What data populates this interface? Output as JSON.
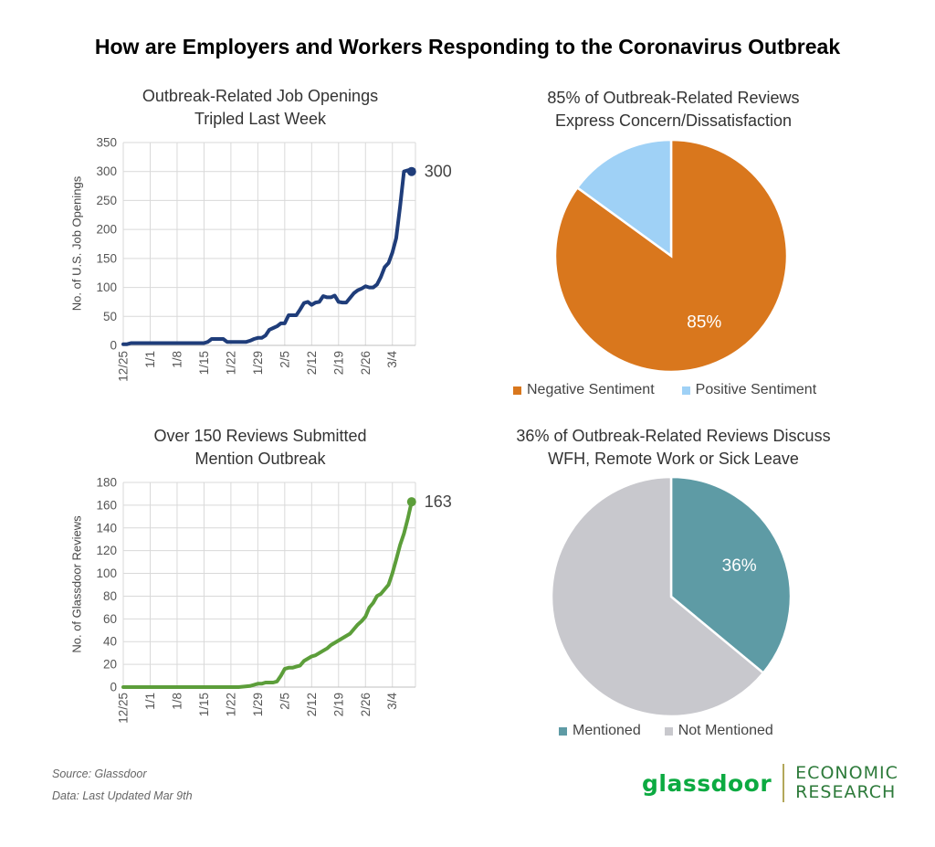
{
  "page": {
    "title": "How are Employers and Workers Responding to the Coronavirus Outbreak",
    "source": "Source: Glassdoor",
    "updated": "Data: Last Updated Mar 9th",
    "logo_left": "glassdoor",
    "logo_right_line1": "ECONOMIC",
    "logo_right_line2": "RESEARCH"
  },
  "chart_data": [
    {
      "type": "line",
      "title_line1": "Outbreak-Related Job Openings",
      "title_line2": "Tripled Last Week",
      "ylabel": "No. of U.S. Job Openings",
      "ylim": [
        0,
        350
      ],
      "yticks": [
        0,
        50,
        100,
        150,
        200,
        250,
        300,
        350
      ],
      "xlim": [
        0,
        76
      ],
      "xticks": [
        "12/25",
        "1/1",
        "1/8",
        "1/15",
        "1/22",
        "1/29",
        "2/5",
        "2/12",
        "2/19",
        "2/26",
        "3/4"
      ],
      "color": "#1f3d7a",
      "end_label": "300",
      "series": [
        {
          "x": [
            0,
            1,
            2,
            3,
            4,
            5,
            6,
            7,
            8,
            9,
            10,
            11,
            12,
            13,
            14,
            15,
            16,
            17,
            18,
            19,
            20,
            21,
            22,
            23,
            24,
            25,
            26,
            27,
            28,
            29,
            30,
            31,
            32,
            33,
            34,
            35,
            36,
            37,
            38,
            39,
            40,
            41,
            42,
            43,
            44,
            45,
            46,
            47,
            48,
            49,
            50,
            51,
            52,
            53,
            54,
            55,
            56,
            57,
            58,
            59,
            60,
            61,
            62,
            63,
            64,
            65,
            66,
            67,
            68,
            69,
            70,
            71,
            72,
            73,
            74,
            75
          ],
          "values": [
            2,
            2,
            4,
            4,
            4,
            4,
            4,
            4,
            4,
            4,
            4,
            4,
            4,
            4,
            4,
            4,
            4,
            4,
            4,
            4,
            4,
            4,
            6,
            11,
            11,
            11,
            11,
            6,
            6,
            6,
            6,
            6,
            6,
            8,
            11,
            13,
            13,
            17,
            27,
            30,
            33,
            38,
            38,
            52,
            52,
            52,
            62,
            73,
            75,
            70,
            74,
            75,
            85,
            83,
            83,
            86,
            75,
            74,
            74,
            82,
            90,
            95,
            98,
            102,
            100,
            100,
            105,
            118,
            135,
            142,
            160,
            185,
            240,
            300,
            302,
            300
          ]
        }
      ]
    },
    {
      "type": "pie",
      "title_line1": "85% of Outbreak-Related Reviews",
      "title_line2": "Express Concern/Dissatisfaction",
      "slices": [
        {
          "label": "Negative Sentiment",
          "value": 85,
          "color": "#d9771d",
          "text": "85%"
        },
        {
          "label": "Positive Sentiment",
          "value": 15,
          "color": "#9fd1f6",
          "text": ""
        }
      ]
    },
    {
      "type": "line",
      "title_line1": "Over 150 Reviews Submitted",
      "title_line2": "Mention Outbreak",
      "ylabel": "No. of Glassdoor Reviews",
      "ylim": [
        0,
        180
      ],
      "yticks": [
        0,
        20,
        40,
        60,
        80,
        100,
        120,
        140,
        160,
        180
      ],
      "xlim": [
        0,
        76
      ],
      "xticks": [
        "12/25",
        "1/1",
        "1/8",
        "1/15",
        "1/22",
        "1/29",
        "2/5",
        "2/12",
        "2/19",
        "2/26",
        "3/4"
      ],
      "color": "#5c9e3a",
      "end_label": "163",
      "series": [
        {
          "x": [
            0,
            5,
            10,
            15,
            20,
            25,
            30,
            33,
            34,
            35,
            36,
            37,
            38,
            39,
            40,
            41,
            42,
            43,
            44,
            45,
            46,
            47,
            48,
            49,
            50,
            51,
            52,
            53,
            54,
            55,
            56,
            57,
            58,
            59,
            60,
            61,
            62,
            63,
            64,
            65,
            66,
            67,
            68,
            69,
            70,
            71,
            72,
            73,
            74,
            75
          ],
          "values": [
            0,
            0,
            0,
            0,
            0,
            0,
            0,
            1,
            2,
            3,
            3,
            4,
            4,
            4,
            5,
            10,
            16,
            17,
            17,
            18,
            19,
            23,
            25,
            27,
            28,
            30,
            32,
            34,
            37,
            39,
            41,
            43,
            45,
            47,
            51,
            55,
            58,
            62,
            70,
            74,
            80,
            82,
            86,
            90,
            100,
            112,
            125,
            135,
            148,
            163
          ]
        }
      ]
    },
    {
      "type": "pie",
      "title_line1": "36% of Outbreak-Related Reviews Discuss",
      "title_line2": "WFH, Remote Work or Sick Leave",
      "slices": [
        {
          "label": "Mentioned",
          "value": 36,
          "color": "#5e9ba5",
          "text": "36%"
        },
        {
          "label": "Not Mentioned",
          "value": 64,
          "color": "#c8c8cd",
          "text": ""
        }
      ]
    }
  ]
}
